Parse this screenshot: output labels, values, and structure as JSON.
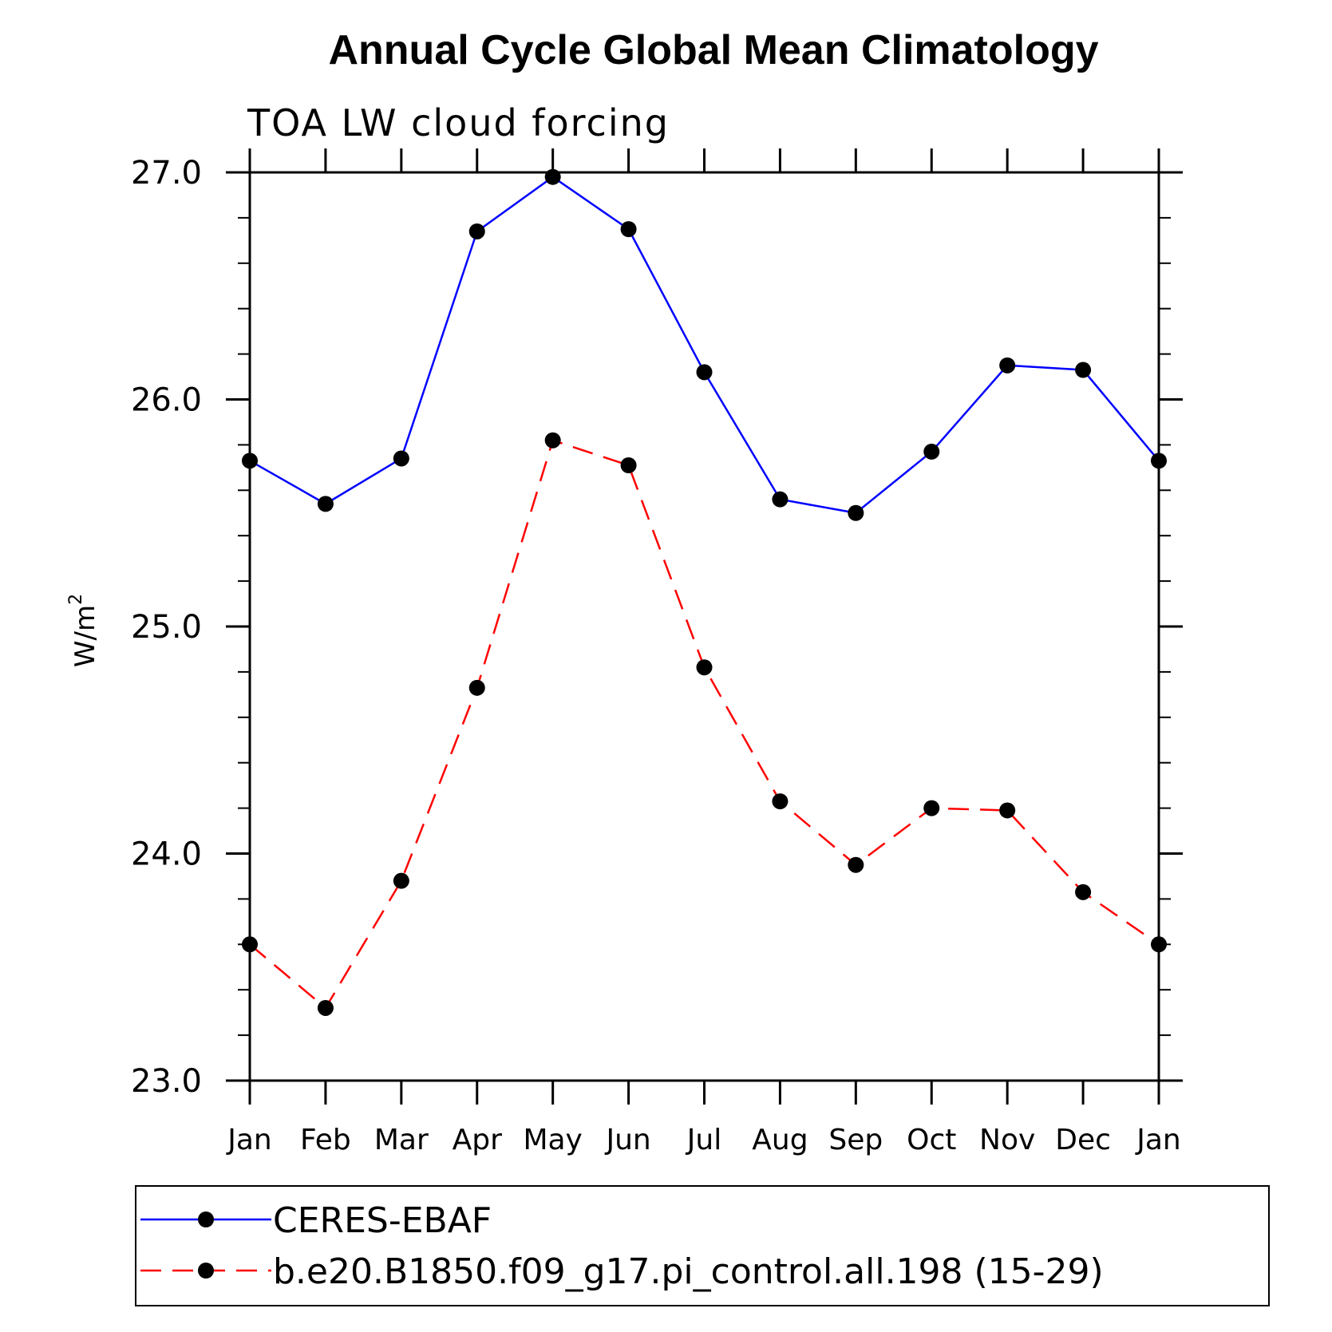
{
  "chart_data": {
    "type": "line",
    "title": "Annual Cycle Global Mean Climatology",
    "subtitle": "TOA LW cloud forcing",
    "ylabel": "W/m",
    "ylabel_sup": "2",
    "xlabel": "",
    "ylim": [
      23.0,
      27.0
    ],
    "yticks": [
      "23.0",
      "24.0",
      "25.0",
      "26.0",
      "27.0"
    ],
    "y_minor_step": 0.2,
    "categories": [
      "Jan",
      "Feb",
      "Mar",
      "Apr",
      "May",
      "Jun",
      "Jul",
      "Aug",
      "Sep",
      "Oct",
      "Nov",
      "Dec",
      "Jan"
    ],
    "grid": false,
    "legend_position": "bottom",
    "series": [
      {
        "name": "CERES-EBAF",
        "color": "#0000ff",
        "line_style": "solid",
        "marker": "filled-circle",
        "values": [
          25.73,
          25.54,
          25.74,
          26.74,
          26.98,
          26.75,
          26.12,
          25.56,
          25.5,
          25.77,
          26.15,
          26.13,
          25.73
        ]
      },
      {
        "name": "b.e20.B1850.f09_g17.pi_control.all.198 (15-29)",
        "color": "#ff0000",
        "line_style": "dashed",
        "marker": "filled-circle",
        "values": [
          23.6,
          23.32,
          23.88,
          24.73,
          25.82,
          25.71,
          24.82,
          24.23,
          23.95,
          24.2,
          24.19,
          23.83,
          23.6
        ]
      }
    ]
  }
}
